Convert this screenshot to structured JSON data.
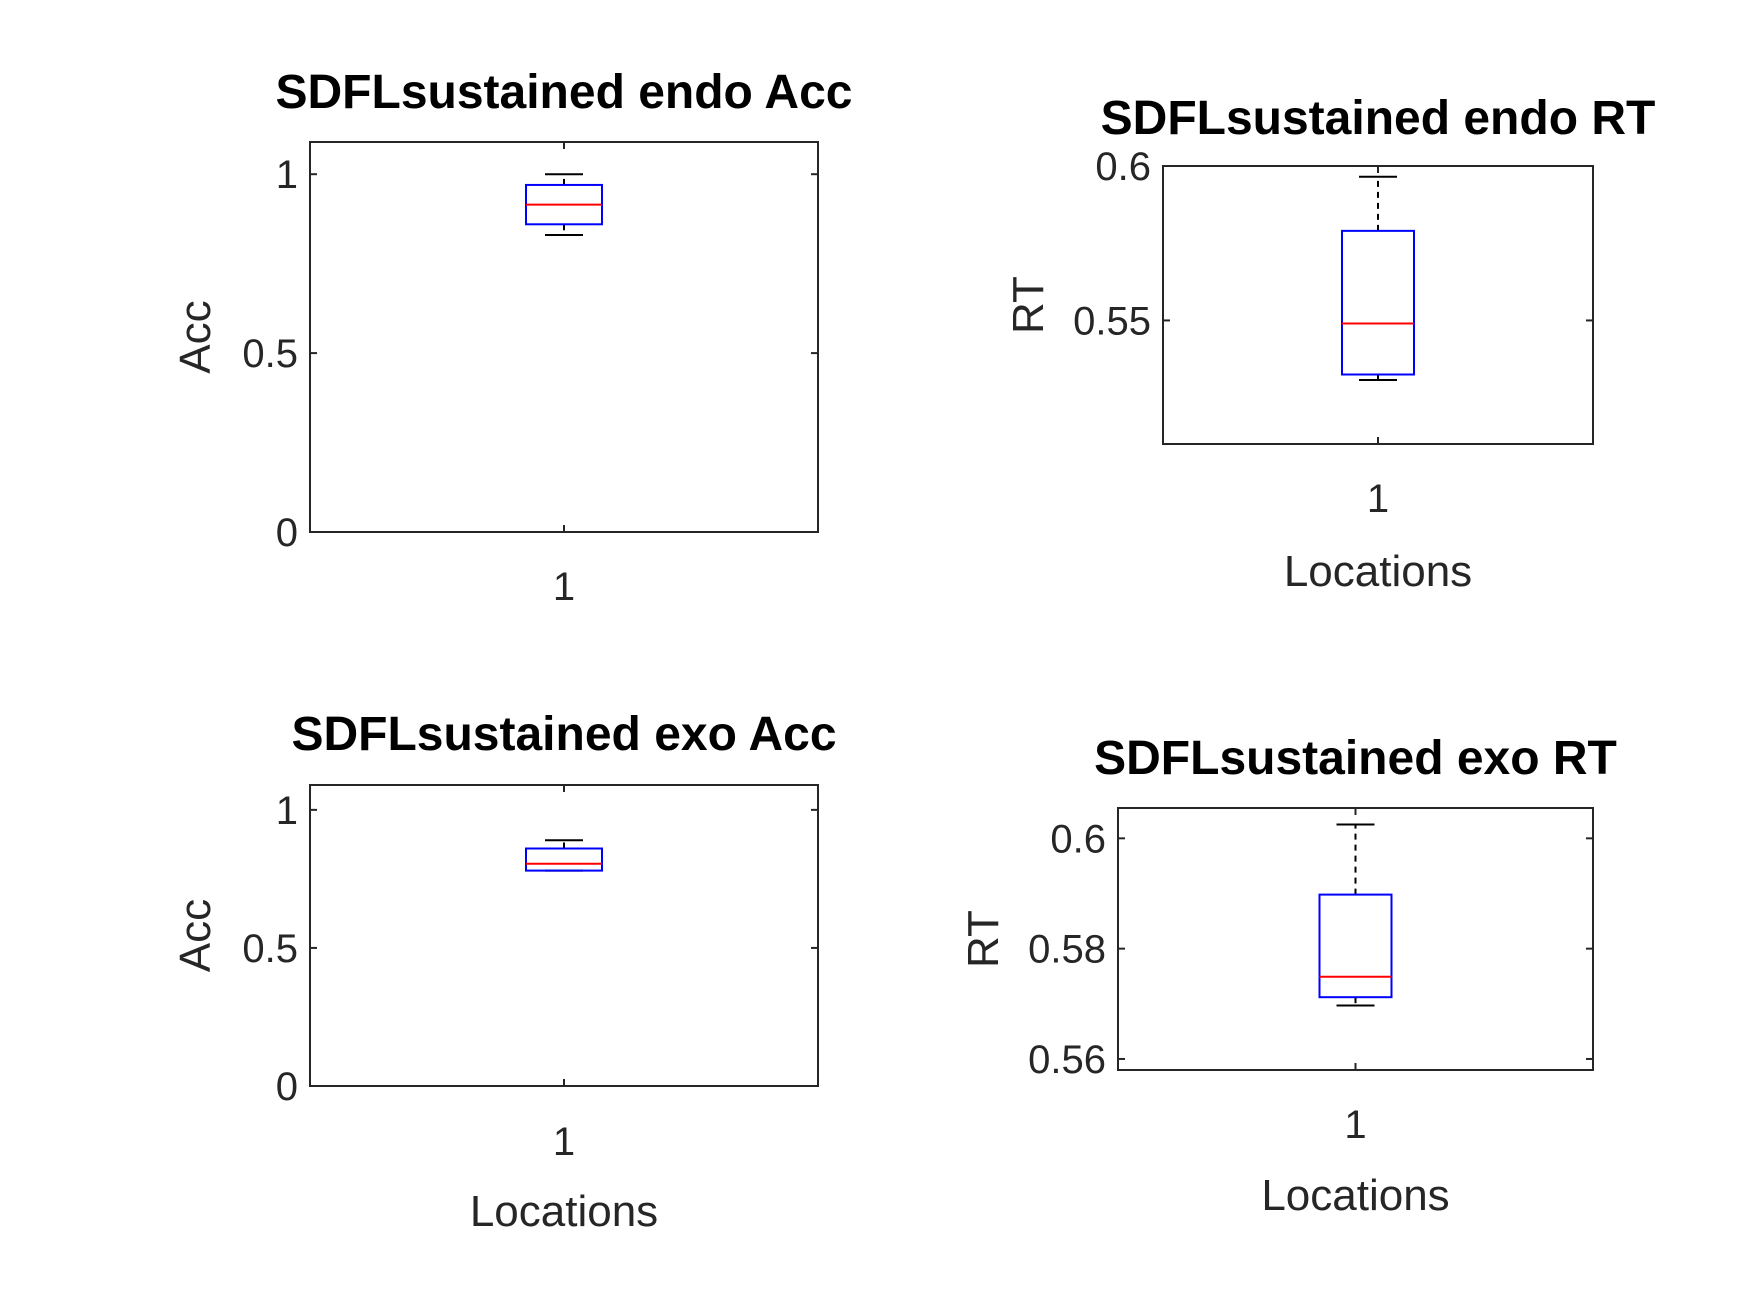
{
  "chart_data": [
    {
      "type": "boxplot",
      "title": "SDFLsustained endo Acc",
      "xlabel": "",
      "ylabel": "Acc",
      "categories": [
        "1"
      ],
      "ylim": [
        0,
        1.09
      ],
      "yticks": [
        "0",
        "0.5",
        "1"
      ],
      "box": {
        "min": 0.83,
        "q1": 0.86,
        "median": 0.915,
        "q3": 0.97,
        "max": 1.0
      },
      "colors": {
        "box": "#0000ff",
        "median": "#ff0000",
        "whisker": "#000000",
        "axes": "#262626"
      }
    },
    {
      "type": "boxplot",
      "title": "SDFLsustained endo RT",
      "xlabel": "Locations",
      "ylabel": "RT",
      "categories": [
        "1"
      ],
      "ylim": [
        0.51,
        0.6
      ],
      "yticks": [
        "0.55",
        "0.6"
      ],
      "box": {
        "min": 0.5307,
        "q1": 0.5325,
        "median": 0.549,
        "q3": 0.579,
        "max": 0.5965
      },
      "colors": {
        "box": "#0000ff",
        "median": "#ff0000",
        "whisker": "#000000",
        "axes": "#262626"
      }
    },
    {
      "type": "boxplot",
      "title": "SDFLsustained exo Acc",
      "xlabel": "Locations",
      "ylabel": "Acc",
      "categories": [
        "1"
      ],
      "ylim": [
        0,
        1.09
      ],
      "yticks": [
        "0",
        "0.5",
        "1"
      ],
      "box": {
        "min": 0.78,
        "q1": 0.78,
        "median": 0.805,
        "q3": 0.86,
        "max": 0.89
      },
      "colors": {
        "box": "#0000ff",
        "median": "#ff0000",
        "whisker": "#000000",
        "axes": "#262626"
      }
    },
    {
      "type": "boxplot",
      "title": "SDFLsustained exo RT",
      "xlabel": "Locations",
      "ylabel": "RT",
      "categories": [
        "1"
      ],
      "ylim": [
        0.558,
        0.6055
      ],
      "yticks": [
        "0.56",
        "0.58",
        "0.6"
      ],
      "box": {
        "min": 0.5697,
        "q1": 0.5712,
        "median": 0.5749,
        "q3": 0.5898,
        "max": 0.6025
      },
      "colors": {
        "box": "#0000ff",
        "median": "#ff0000",
        "whisker": "#000000",
        "axes": "#262626"
      }
    }
  ]
}
